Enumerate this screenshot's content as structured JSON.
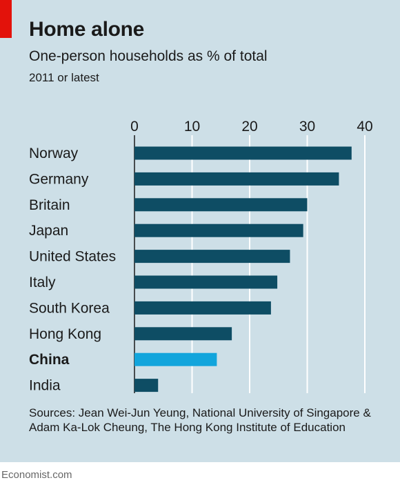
{
  "header": {
    "title": "Home alone",
    "subtitle": "One-person households as % of total",
    "note": "2011 or latest"
  },
  "chart_data": {
    "type": "bar",
    "orientation": "horizontal",
    "categories": [
      "Norway",
      "Germany",
      "Britain",
      "Japan",
      "United States",
      "Italy",
      "South Korea",
      "Hong Kong",
      "China",
      "India"
    ],
    "values": [
      37.7,
      35.5,
      30.0,
      29.3,
      27.0,
      24.8,
      23.7,
      16.9,
      14.3,
      4.1
    ],
    "highlight": "China",
    "xlim": [
      0,
      40
    ],
    "xticks": [
      0,
      10,
      20,
      30,
      40
    ],
    "tick_position": "top",
    "grid": true,
    "title": "Home alone",
    "subtitle": "One-person households as % of total",
    "colors": {
      "bar": "#0e4d64",
      "highlight": "#12a5dc",
      "grid": "#ffffff",
      "axis": "#1a1a1a"
    }
  },
  "source": "Sources: Jean Wei-Jun Yeung, National University of Singapore & Adam Ka-Lok Cheung, The Hong Kong Institute of Education",
  "footer": "Economist.com"
}
